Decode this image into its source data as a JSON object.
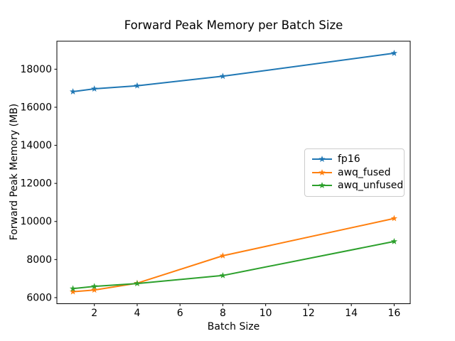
{
  "window": {
    "background_color": "#ffffff",
    "text_color": "#000000",
    "spine_color": "#000000"
  },
  "chart_data": {
    "type": "line",
    "title": "Forward Peak Memory per Batch Size",
    "xlabel": "Batch Size",
    "ylabel": "Forward Peak Memory (MB)",
    "x": [
      1,
      2,
      4,
      8,
      16
    ],
    "series": [
      {
        "name": "fp16",
        "color": "#1f77b4",
        "marker": "star",
        "values": [
          16820,
          16970,
          17130,
          17630,
          18840
        ]
      },
      {
        "name": "awq_fused",
        "color": "#ff7f0e",
        "marker": "star",
        "values": [
          6310,
          6400,
          6760,
          8200,
          10160
        ]
      },
      {
        "name": "awq_unfused",
        "color": "#2ca02c",
        "marker": "star",
        "values": [
          6470,
          6590,
          6740,
          7160,
          8950
        ]
      }
    ],
    "xticks": [
      2,
      4,
      6,
      8,
      10,
      12,
      14,
      16
    ],
    "yticks": [
      6000,
      8000,
      10000,
      12000,
      14000,
      16000,
      18000
    ],
    "xlim": [
      0.25,
      16.75
    ],
    "ylim": [
      5680,
      19470
    ],
    "grid": false,
    "legend": {
      "position": "center right"
    }
  }
}
